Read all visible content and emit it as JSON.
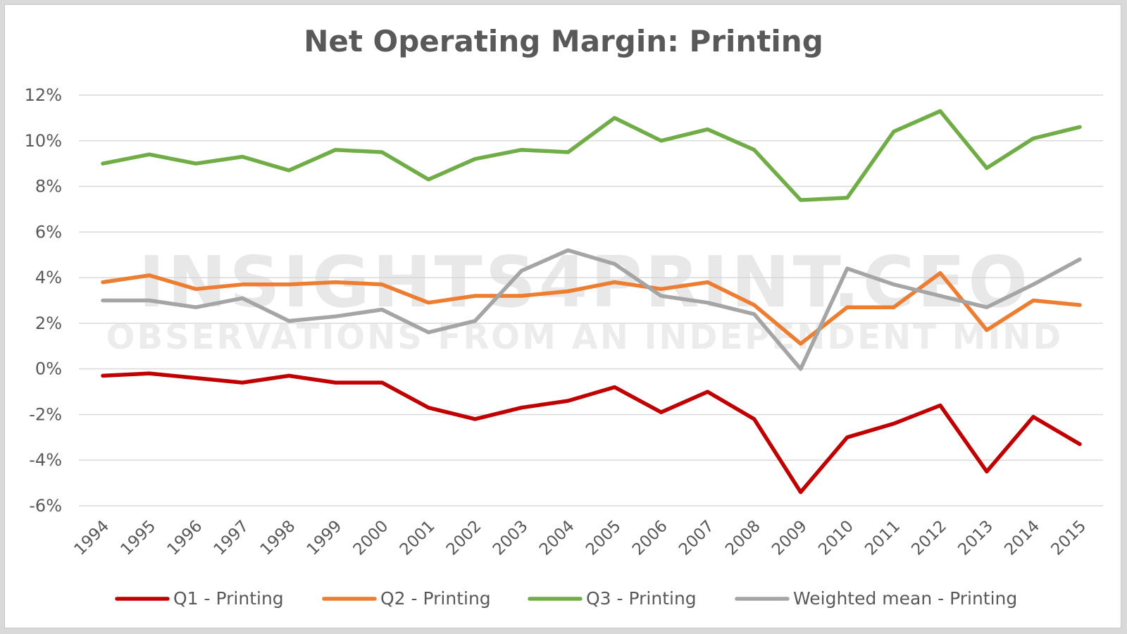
{
  "chart_data": {
    "type": "line",
    "title": "Net Operating Margin: Printing",
    "xlabel": "",
    "ylabel": "",
    "ylim": [
      -6,
      12
    ],
    "ytick_step": 2,
    "y_tick_labels": [
      "-6%",
      "-4%",
      "-2%",
      "0%",
      "2%",
      "4%",
      "6%",
      "8%",
      "10%",
      "12%"
    ],
    "grid": true,
    "legend_position": "bottom",
    "watermark": [
      "INSIGHTS4PRINT.CEO",
      "OBSERVATIONS FROM AN INDEPENDENT MIND"
    ],
    "categories": [
      "1994",
      "1995",
      "1996",
      "1997",
      "1998",
      "1999",
      "2000",
      "2001",
      "2002",
      "2003",
      "2004",
      "2005",
      "2006",
      "2007",
      "2008",
      "2009",
      "2010",
      "2011",
      "2012",
      "2013",
      "2014",
      "2015"
    ],
    "series": [
      {
        "name": "Q1 - Printing",
        "color": "#c00000",
        "values": [
          -0.3,
          -0.2,
          -0.4,
          -0.6,
          -0.3,
          -0.6,
          -0.6,
          -1.7,
          -2.2,
          -1.7,
          -1.4,
          -0.8,
          -1.9,
          -1.0,
          -2.2,
          -5.4,
          -3.0,
          -2.4,
          -1.6,
          -4.5,
          -2.1,
          -3.3
        ]
      },
      {
        "name": "Q2 - Printing",
        "color": "#ed7d31",
        "values": [
          3.8,
          4.1,
          3.5,
          3.7,
          3.7,
          3.8,
          3.7,
          2.9,
          3.2,
          3.2,
          3.4,
          3.8,
          3.5,
          3.8,
          2.8,
          1.1,
          2.7,
          2.7,
          4.2,
          1.7,
          3.0,
          2.8
        ]
      },
      {
        "name": "Q3 - Printing",
        "color": "#70ad47",
        "values": [
          9.0,
          9.4,
          9.0,
          9.3,
          8.7,
          9.6,
          9.5,
          8.3,
          9.2,
          9.6,
          9.5,
          11.0,
          10.0,
          10.5,
          9.6,
          7.4,
          7.5,
          10.4,
          11.3,
          8.8,
          10.1,
          10.6
        ]
      },
      {
        "name": "Weighted mean - Printing",
        "color": "#a5a5a5",
        "values": [
          3.0,
          3.0,
          2.7,
          3.1,
          2.1,
          2.3,
          2.6,
          1.6,
          2.1,
          4.3,
          5.2,
          4.6,
          3.2,
          2.9,
          2.4,
          0.0,
          4.4,
          3.7,
          3.2,
          2.7,
          3.7,
          4.8
        ]
      }
    ]
  }
}
